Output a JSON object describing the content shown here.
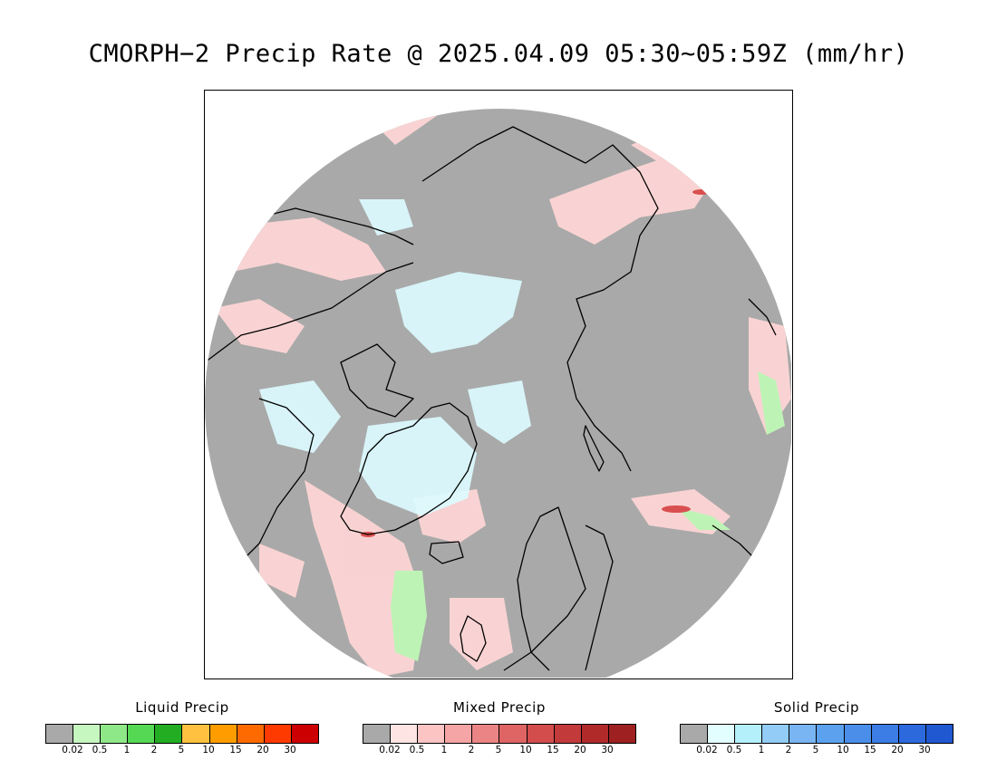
{
  "title": "CMORPH−2 Precip Rate @ 2025.04.09 05:30~05:59Z (mm/hr)",
  "map": {
    "projection": "north-polar-stereographic",
    "no_precip_color": "#a9a9a9",
    "coastline_color": "#000000"
  },
  "legends": [
    {
      "key": "liquid",
      "title": "Liquid Precip",
      "colors": [
        "#a9a9a9",
        "#c7f7c0",
        "#8fe888",
        "#55d955",
        "#22ad22",
        "#ffc13f",
        "#ff9d00",
        "#ff6a00",
        "#ff3a00",
        "#cc0000"
      ],
      "ticks": [
        "0.02",
        "0.5",
        "1",
        "2",
        "5",
        "10",
        "15",
        "20",
        "30"
      ]
    },
    {
      "key": "mixed",
      "title": "Mixed Precip",
      "colors": [
        "#a9a9a9",
        "#ffe4e4",
        "#fdc4c4",
        "#f5a5a5",
        "#eb8585",
        "#df6464",
        "#d34d4d",
        "#c23a3a",
        "#b02a2a",
        "#9e2020"
      ],
      "ticks": [
        "0.02",
        "0.5",
        "1",
        "2",
        "5",
        "10",
        "15",
        "20",
        "30"
      ]
    },
    {
      "key": "solid",
      "title": "Solid Precip",
      "colors": [
        "#a9a9a9",
        "#e2feff",
        "#b3f0fa",
        "#93ccf6",
        "#78b5f2",
        "#5ba1ee",
        "#4a8eea",
        "#3b7ce5",
        "#2b69dd",
        "#1f58d0"
      ],
      "ticks": [
        "0.02",
        "0.5",
        "1",
        "2",
        "5",
        "10",
        "15",
        "20",
        "30"
      ]
    }
  ]
}
